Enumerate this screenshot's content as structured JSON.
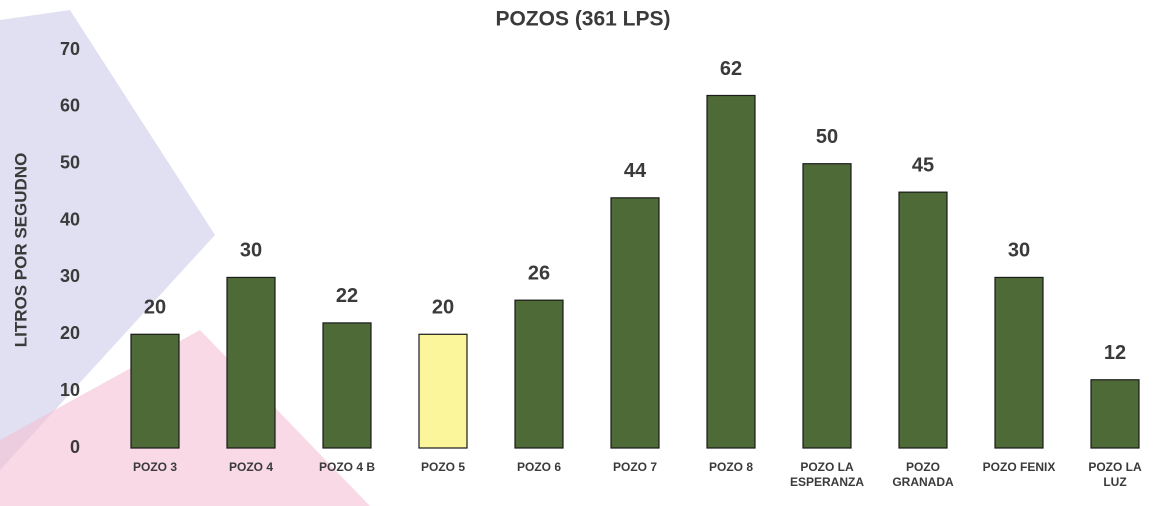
{
  "chart_data": {
    "type": "bar",
    "title": "POZOS (361 LPS)",
    "y_label": "LITROS POR SEGUDNO",
    "categories": [
      "POZO 3",
      "POZO 4",
      "POZO 4 B",
      "POZO 5",
      "POZO 6",
      "POZO 7",
      "POZO 8",
      "POZO LA ESPERANZA",
      "POZO GRANADA",
      "POZO FENIX",
      "POZO LA LUZ"
    ],
    "values": [
      20,
      30,
      22,
      20,
      26,
      44,
      62,
      50,
      45,
      30,
      12
    ],
    "colors": [
      "#4e6a36",
      "#4e6a36",
      "#4e6a36",
      "#fbf59b",
      "#4e6a36",
      "#4e6a36",
      "#4e6a36",
      "#4e6a36",
      "#4e6a36",
      "#4e6a36",
      "#4e6a36"
    ],
    "ylim": [
      0,
      70
    ],
    "yticks": [
      0,
      10,
      20,
      30,
      40,
      50,
      60,
      70
    ],
    "grid": false
  }
}
